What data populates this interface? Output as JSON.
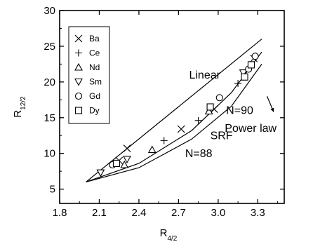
{
  "chart_data": {
    "type": "scatter",
    "xlabel": {
      "main": "R",
      "sub": "4/2"
    },
    "ylabel": {
      "main": "R",
      "sub": "12/2"
    },
    "xlim": [
      1.8,
      3.5
    ],
    "ylim": [
      3,
      30
    ],
    "xticks": [
      "1.8",
      "2.1",
      "2.4",
      "2.7",
      "3.0",
      "3.3"
    ],
    "xtick_values": [
      1.8,
      2.1,
      2.4,
      2.7,
      3.0,
      3.3
    ],
    "yticks": [
      "5",
      "10",
      "15",
      "20",
      "25",
      "30"
    ],
    "ytick_values": [
      5,
      10,
      15,
      20,
      25,
      30
    ],
    "legend_position": "top-left",
    "series": [
      {
        "name": "Ba",
        "marker": "x",
        "points": [
          [
            2.31,
            10.7
          ],
          [
            2.25,
            9.0
          ],
          [
            2.72,
            13.4
          ],
          [
            2.97,
            16.2
          ],
          [
            3.27,
            23.3
          ]
        ]
      },
      {
        "name": "Ce",
        "marker": "plus",
        "points": [
          [
            2.59,
            11.8
          ],
          [
            2.85,
            14.6
          ],
          [
            3.15,
            19.8
          ],
          [
            3.24,
            22.0
          ]
        ]
      },
      {
        "name": "Nd",
        "marker": "triangle-up",
        "points": [
          [
            2.29,
            8.4
          ],
          [
            2.5,
            10.5
          ],
          [
            2.93,
            15.9
          ]
        ]
      },
      {
        "name": "Sm",
        "marker": "triangle-down",
        "points": [
          [
            2.11,
            7.3
          ],
          [
            2.31,
            9.2
          ],
          [
            3.19,
            21.3
          ]
        ]
      },
      {
        "name": "Gd",
        "marker": "circle",
        "points": [
          [
            2.2,
            8.4
          ],
          [
            3.01,
            17.8
          ],
          [
            3.23,
            21.8
          ],
          [
            3.28,
            23.6
          ]
        ]
      },
      {
        "name": "Dy",
        "marker": "square",
        "points": [
          [
            2.23,
            8.6
          ],
          [
            2.94,
            16.5
          ],
          [
            3.2,
            20.7
          ],
          [
            3.25,
            22.4
          ]
        ]
      }
    ],
    "lines": [
      {
        "name": "Linear",
        "points": [
          [
            2.0,
            6.0
          ],
          [
            3.33,
            26.0
          ]
        ]
      },
      {
        "name": "SRF",
        "points": [
          [
            2.0,
            6.0
          ],
          [
            2.4,
            8.6
          ],
          [
            2.8,
            13.2
          ],
          [
            3.1,
            18.5
          ],
          [
            3.33,
            24.2
          ]
        ]
      },
      {
        "name": "Power law",
        "points": [
          [
            2.0,
            6.0
          ],
          [
            2.4,
            8.0
          ],
          [
            2.8,
            12.0
          ],
          [
            3.1,
            16.6
          ],
          [
            3.33,
            22.5
          ]
        ]
      }
    ],
    "annotations": [
      {
        "text": "Linear",
        "x": 2.78,
        "y": 20.5
      },
      {
        "text": "SRF",
        "x": 2.94,
        "y": 12.0
      },
      {
        "text": "N=88",
        "x": 2.75,
        "y": 9.5
      },
      {
        "text": "N=90",
        "x": 3.06,
        "y": 15.5
      },
      {
        "text": "Power law",
        "x": 3.05,
        "y": 13.0
      }
    ],
    "arrow": {
      "from": [
        3.37,
        18.0
      ],
      "to": [
        3.42,
        15.8
      ]
    },
    "marker_color": "#000000"
  }
}
